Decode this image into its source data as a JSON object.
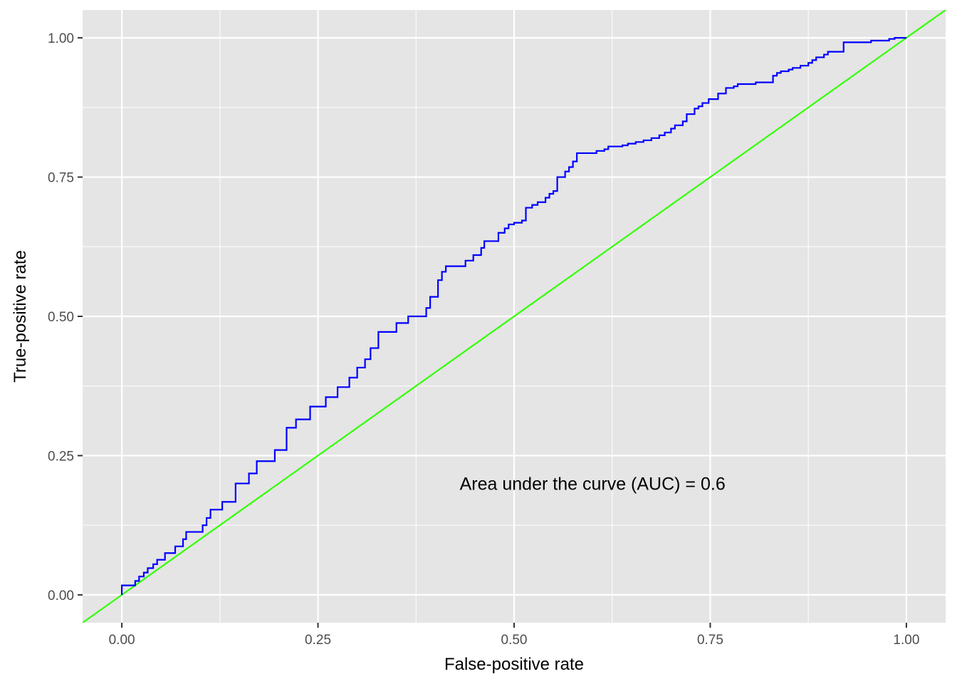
{
  "chart_data": {
    "type": "line",
    "title": "",
    "xlabel": "False-positive rate",
    "ylabel": "True-positive rate",
    "xlim": [
      -0.05,
      1.05
    ],
    "ylim": [
      -0.05,
      1.05
    ],
    "x_ticks": [
      0,
      0.25,
      0.5,
      0.75,
      1
    ],
    "x_tick_labels": [
      "0.00",
      "0.25",
      "0.50",
      "0.75",
      "1.00"
    ],
    "y_ticks": [
      0,
      0.25,
      0.5,
      0.75,
      1
    ],
    "y_tick_labels": [
      "0.00",
      "0.25",
      "0.50",
      "0.75",
      "1.00"
    ],
    "grid": true,
    "annotation": {
      "text": "Area under the curve (AUC) = 0.6",
      "x": 0.6,
      "y": 0.2
    },
    "colors": {
      "panel": "#e5e5e5",
      "grid": "#ffffff",
      "roc": "#0000ff",
      "diagonal": "#33ff00"
    },
    "series": [
      {
        "style": "step",
        "color": "#0000ff",
        "points": [
          [
            0,
            0
          ],
          [
            0,
            0.017
          ],
          [
            0.017,
            0.017
          ],
          [
            0.017,
            0.025
          ],
          [
            0.022,
            0.025
          ],
          [
            0.022,
            0.033
          ],
          [
            0.028,
            0.033
          ],
          [
            0.028,
            0.04
          ],
          [
            0.033,
            0.04
          ],
          [
            0.033,
            0.048
          ],
          [
            0.04,
            0.048
          ],
          [
            0.04,
            0.055
          ],
          [
            0.045,
            0.055
          ],
          [
            0.045,
            0.063
          ],
          [
            0.055,
            0.063
          ],
          [
            0.055,
            0.075
          ],
          [
            0.068,
            0.075
          ],
          [
            0.068,
            0.087
          ],
          [
            0.078,
            0.087
          ],
          [
            0.078,
            0.1
          ],
          [
            0.082,
            0.1
          ],
          [
            0.082,
            0.113
          ],
          [
            0.103,
            0.113
          ],
          [
            0.103,
            0.125
          ],
          [
            0.108,
            0.125
          ],
          [
            0.108,
            0.138
          ],
          [
            0.113,
            0.138
          ],
          [
            0.113,
            0.153
          ],
          [
            0.128,
            0.153
          ],
          [
            0.128,
            0.167
          ],
          [
            0.145,
            0.167
          ],
          [
            0.145,
            0.2
          ],
          [
            0.162,
            0.2
          ],
          [
            0.162,
            0.218
          ],
          [
            0.172,
            0.218
          ],
          [
            0.172,
            0.24
          ],
          [
            0.195,
            0.24
          ],
          [
            0.195,
            0.26
          ],
          [
            0.21,
            0.26
          ],
          [
            0.21,
            0.3
          ],
          [
            0.222,
            0.3
          ],
          [
            0.222,
            0.315
          ],
          [
            0.24,
            0.315
          ],
          [
            0.24,
            0.338
          ],
          [
            0.26,
            0.338
          ],
          [
            0.26,
            0.355
          ],
          [
            0.275,
            0.355
          ],
          [
            0.275,
            0.373
          ],
          [
            0.29,
            0.373
          ],
          [
            0.29,
            0.39
          ],
          [
            0.3,
            0.39
          ],
          [
            0.3,
            0.408
          ],
          [
            0.31,
            0.408
          ],
          [
            0.31,
            0.423
          ],
          [
            0.317,
            0.423
          ],
          [
            0.317,
            0.443
          ],
          [
            0.327,
            0.443
          ],
          [
            0.327,
            0.472
          ],
          [
            0.35,
            0.472
          ],
          [
            0.35,
            0.488
          ],
          [
            0.365,
            0.488
          ],
          [
            0.365,
            0.5
          ],
          [
            0.388,
            0.5
          ],
          [
            0.388,
            0.515
          ],
          [
            0.393,
            0.515
          ],
          [
            0.393,
            0.535
          ],
          [
            0.403,
            0.535
          ],
          [
            0.403,
            0.565
          ],
          [
            0.408,
            0.565
          ],
          [
            0.408,
            0.58
          ],
          [
            0.413,
            0.58
          ],
          [
            0.413,
            0.59
          ],
          [
            0.438,
            0.59
          ],
          [
            0.438,
            0.6
          ],
          [
            0.448,
            0.6
          ],
          [
            0.448,
            0.61
          ],
          [
            0.458,
            0.61
          ],
          [
            0.458,
            0.623
          ],
          [
            0.462,
            0.623
          ],
          [
            0.462,
            0.635
          ],
          [
            0.48,
            0.635
          ],
          [
            0.48,
            0.65
          ],
          [
            0.488,
            0.65
          ],
          [
            0.488,
            0.658
          ],
          [
            0.493,
            0.658
          ],
          [
            0.493,
            0.665
          ],
          [
            0.5,
            0.665
          ],
          [
            0.5,
            0.668
          ],
          [
            0.51,
            0.668
          ],
          [
            0.51,
            0.672
          ],
          [
            0.515,
            0.672
          ],
          [
            0.515,
            0.695
          ],
          [
            0.523,
            0.695
          ],
          [
            0.523,
            0.7
          ],
          [
            0.53,
            0.7
          ],
          [
            0.53,
            0.705
          ],
          [
            0.54,
            0.705
          ],
          [
            0.54,
            0.713
          ],
          [
            0.545,
            0.713
          ],
          [
            0.545,
            0.72
          ],
          [
            0.55,
            0.72
          ],
          [
            0.55,
            0.725
          ],
          [
            0.555,
            0.725
          ],
          [
            0.555,
            0.75
          ],
          [
            0.565,
            0.75
          ],
          [
            0.565,
            0.76
          ],
          [
            0.57,
            0.76
          ],
          [
            0.57,
            0.768
          ],
          [
            0.575,
            0.768
          ],
          [
            0.575,
            0.778
          ],
          [
            0.58,
            0.778
          ],
          [
            0.58,
            0.793
          ],
          [
            0.605,
            0.793
          ],
          [
            0.605,
            0.797
          ],
          [
            0.615,
            0.797
          ],
          [
            0.615,
            0.8
          ],
          [
            0.62,
            0.8
          ],
          [
            0.62,
            0.805
          ],
          [
            0.638,
            0.805
          ],
          [
            0.638,
            0.807
          ],
          [
            0.645,
            0.807
          ],
          [
            0.645,
            0.81
          ],
          [
            0.655,
            0.81
          ],
          [
            0.655,
            0.813
          ],
          [
            0.665,
            0.813
          ],
          [
            0.665,
            0.816
          ],
          [
            0.675,
            0.816
          ],
          [
            0.675,
            0.82
          ],
          [
            0.685,
            0.82
          ],
          [
            0.685,
            0.825
          ],
          [
            0.692,
            0.825
          ],
          [
            0.692,
            0.83
          ],
          [
            0.7,
            0.83
          ],
          [
            0.7,
            0.837
          ],
          [
            0.705,
            0.837
          ],
          [
            0.705,
            0.843
          ],
          [
            0.715,
            0.843
          ],
          [
            0.715,
            0.85
          ],
          [
            0.72,
            0.85
          ],
          [
            0.72,
            0.863
          ],
          [
            0.73,
            0.863
          ],
          [
            0.73,
            0.873
          ],
          [
            0.735,
            0.873
          ],
          [
            0.735,
            0.877
          ],
          [
            0.74,
            0.877
          ],
          [
            0.74,
            0.883
          ],
          [
            0.748,
            0.883
          ],
          [
            0.748,
            0.89
          ],
          [
            0.76,
            0.89
          ],
          [
            0.76,
            0.9
          ],
          [
            0.77,
            0.9
          ],
          [
            0.77,
            0.91
          ],
          [
            0.78,
            0.91
          ],
          [
            0.78,
            0.913
          ],
          [
            0.785,
            0.913
          ],
          [
            0.785,
            0.917
          ],
          [
            0.808,
            0.917
          ],
          [
            0.808,
            0.92
          ],
          [
            0.83,
            0.92
          ],
          [
            0.83,
            0.932
          ],
          [
            0.835,
            0.932
          ],
          [
            0.835,
            0.937
          ],
          [
            0.84,
            0.937
          ],
          [
            0.84,
            0.94
          ],
          [
            0.85,
            0.94
          ],
          [
            0.85,
            0.943
          ],
          [
            0.855,
            0.943
          ],
          [
            0.855,
            0.946
          ],
          [
            0.865,
            0.946
          ],
          [
            0.865,
            0.95
          ],
          [
            0.875,
            0.95
          ],
          [
            0.875,
            0.955
          ],
          [
            0.88,
            0.955
          ],
          [
            0.88,
            0.96
          ],
          [
            0.885,
            0.96
          ],
          [
            0.885,
            0.965
          ],
          [
            0.895,
            0.965
          ],
          [
            0.895,
            0.97
          ],
          [
            0.9,
            0.97
          ],
          [
            0.9,
            0.975
          ],
          [
            0.92,
            0.975
          ],
          [
            0.92,
            0.992
          ],
          [
            0.955,
            0.992
          ],
          [
            0.955,
            0.995
          ],
          [
            0.978,
            0.995
          ],
          [
            0.978,
            0.998
          ],
          [
            0.985,
            0.998
          ],
          [
            0.985,
            1
          ],
          [
            1,
            1
          ]
        ]
      },
      {
        "style": "diagonal",
        "color": "#33ff00",
        "points": [
          [
            -0.05,
            -0.05
          ],
          [
            1.05,
            1.05
          ]
        ]
      }
    ]
  }
}
